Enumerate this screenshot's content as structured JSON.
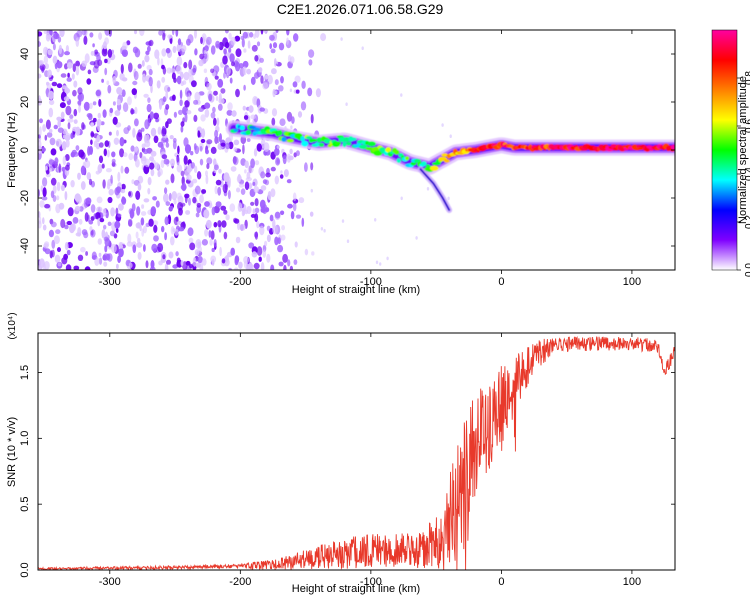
{
  "page_title": "C2E1.2026.071.06.58.G29",
  "chart_data": [
    {
      "type": "heatmap",
      "title": "C2E1.2026.071.06.58.G29",
      "xlabel": "Height of straight line (km)",
      "ylabel": "Frequency (Hz)",
      "xlim": [
        -355,
        133
      ],
      "ylim": [
        -50,
        50
      ],
      "x_ticks": [
        -300,
        -200,
        -100,
        0,
        100
      ],
      "y_ticks": [
        -40,
        -20,
        0,
        20,
        40
      ],
      "x_tick_labels": [
        "-300",
        "-200",
        "-100",
        "0",
        "100"
      ],
      "y_tick_labels": [
        "-40",
        "-20",
        "0",
        "20",
        "40"
      ],
      "colorbar": {
        "label": "Normalized spectral amplitude",
        "range": [
          0,
          1
        ],
        "ticks": [
          0.0,
          0.2,
          0.4,
          0.6,
          0.8
        ],
        "tick_labels": [
          "0.0",
          "0.2",
          "0.4",
          "0.6",
          "0.8"
        ],
        "colormap": [
          "#ffffff",
          "#7f00ff",
          "#0000ff",
          "#00ffff",
          "#00ff00",
          "#ffff00",
          "#ff8000",
          "#ff0000",
          "#ff00a0"
        ]
      },
      "noise_region_x": [
        -355,
        -175
      ],
      "ridge": {
        "x": [
          -205,
          -190,
          -175,
          -160,
          -140,
          -120,
          -100,
          -85,
          -70,
          -55,
          -45,
          -35,
          -20,
          -10,
          0,
          10,
          30,
          60,
          80,
          100,
          133
        ],
        "freq": [
          9,
          8,
          7,
          5,
          3,
          4,
          1,
          -1,
          -5,
          -7,
          -4,
          -1,
          0,
          1,
          2,
          1,
          1,
          1,
          1,
          1,
          1
        ],
        "amplitude": [
          0.35,
          0.4,
          0.45,
          0.45,
          0.5,
          0.45,
          0.5,
          0.5,
          0.45,
          0.5,
          0.6,
          0.7,
          0.8,
          0.85,
          0.85,
          0.8,
          0.85,
          0.9,
          0.9,
          0.95,
          0.9
        ]
      },
      "tail": {
        "x": [
          -62,
          -52,
          -45,
          -40
        ],
        "freq": [
          -8,
          -14,
          -20,
          -25
        ]
      }
    },
    {
      "type": "line",
      "xlabel": "Height of straight line (km)",
      "ylabel": "SNR (10 * v/v)",
      "multiplier": "(x10⁴)",
      "xlim": [
        -355,
        133
      ],
      "ylim": [
        0,
        1.8
      ],
      "x_ticks": [
        -300,
        -200,
        -100,
        0,
        100
      ],
      "y_ticks": [
        0.0,
        0.5,
        1.0,
        1.5
      ],
      "x_tick_labels": [
        "-300",
        "-200",
        "-100",
        "0",
        "100"
      ],
      "y_tick_labels": [
        "0.0",
        "0.5",
        "1.0",
        "1.5"
      ],
      "color": "#e8392b",
      "trend": {
        "x": [
          -355,
          -250,
          -200,
          -170,
          -150,
          -120,
          -90,
          -60,
          -45,
          -40,
          -35,
          -30,
          -25,
          -20,
          -10,
          0,
          10,
          20,
          30,
          40,
          60,
          100,
          120,
          125,
          130,
          133
        ],
        "y": [
          0.01,
          0.02,
          0.03,
          0.04,
          0.08,
          0.13,
          0.15,
          0.15,
          0.25,
          0.35,
          0.5,
          0.65,
          0.8,
          0.95,
          1.1,
          1.25,
          1.4,
          1.55,
          1.65,
          1.7,
          1.72,
          1.72,
          1.7,
          1.5,
          1.6,
          1.68
        ]
      },
      "noise_amp": {
        "x": [
          -355,
          -200,
          -160,
          -120,
          -60,
          -45,
          -35,
          -20,
          0,
          20,
          40,
          133
        ],
        "y": [
          0.008,
          0.015,
          0.06,
          0.12,
          0.14,
          0.25,
          0.45,
          0.4,
          0.3,
          0.15,
          0.06,
          0.05
        ]
      }
    }
  ]
}
